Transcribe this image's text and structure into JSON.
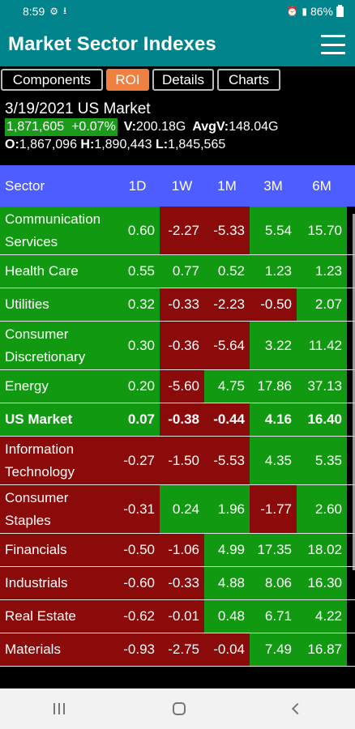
{
  "status_bar": {
    "time": "8:59",
    "battery": "86%"
  },
  "app": {
    "title": "Market Sector Indexes"
  },
  "tabs": [
    {
      "label": "Components",
      "active": false
    },
    {
      "label": "ROI",
      "active": true
    },
    {
      "label": "Details",
      "active": false
    },
    {
      "label": "Charts",
      "active": false
    }
  ],
  "summary": {
    "date_market": "3/19/2021  US Market",
    "price": "1,871,605",
    "change": "+0.07%",
    "v_label": "V:",
    "volume": "200.18G",
    "avgv_label": "AvgV:",
    "avg_volume": "148.04G",
    "o_label": "O:",
    "open": "1,867,096",
    "h_label": "H:",
    "high": "1,890,443",
    "l_label": "L:",
    "low": "1,845,565"
  },
  "table": {
    "headers": [
      "Sector",
      "1D",
      "1W",
      "1M",
      "3M",
      "6M"
    ],
    "rows": [
      {
        "sector": "Communication Services",
        "values": [
          "0.60",
          "-2.27",
          "-5.33",
          "5.54",
          "15.70"
        ],
        "two_line": true
      },
      {
        "sector": "Health Care",
        "values": [
          "0.55",
          "0.77",
          "0.52",
          "1.23",
          "1.23"
        ],
        "two_line": false
      },
      {
        "sector": "Utilities",
        "values": [
          "0.32",
          "-0.33",
          "-2.23",
          "-0.50",
          "2.07"
        ],
        "two_line": false
      },
      {
        "sector": "Consumer Discretionary",
        "values": [
          "0.30",
          "-0.36",
          "-5.64",
          "3.22",
          "11.42"
        ],
        "two_line": true
      },
      {
        "sector": "Energy",
        "values": [
          "0.20",
          "-5.60",
          "4.75",
          "17.86",
          "37.13"
        ],
        "two_line": false
      },
      {
        "sector": "US Market",
        "values": [
          "0.07",
          "-0.38",
          "-0.44",
          "4.16",
          "16.40"
        ],
        "two_line": false,
        "bold": true
      },
      {
        "sector": "Information Technology",
        "values": [
          "-0.27",
          "-1.50",
          "-5.53",
          "4.35",
          "5.35"
        ],
        "two_line": true
      },
      {
        "sector": "Consumer Staples",
        "values": [
          "-0.31",
          "0.24",
          "1.96",
          "-1.77",
          "2.60"
        ],
        "two_line": true
      },
      {
        "sector": "Financials",
        "values": [
          "-0.50",
          "-1.06",
          "4.99",
          "17.35",
          "18.02"
        ],
        "two_line": false
      },
      {
        "sector": "Industrials",
        "values": [
          "-0.60",
          "-0.33",
          "4.88",
          "8.06",
          "16.30"
        ],
        "two_line": false
      },
      {
        "sector": "Real Estate",
        "values": [
          "-0.62",
          "-0.01",
          "0.48",
          "6.71",
          "4.22"
        ],
        "two_line": false
      },
      {
        "sector": "Materials",
        "values": [
          "-0.93",
          "-2.75",
          "-0.04",
          "7.49",
          "16.87"
        ],
        "two_line": false
      }
    ]
  },
  "colors": {
    "header_bg": "#00838a",
    "table_header_bg": "#4d5dff",
    "positive": "#119a11",
    "negative": "#8b0a0a",
    "active_tab": "#f08040"
  }
}
